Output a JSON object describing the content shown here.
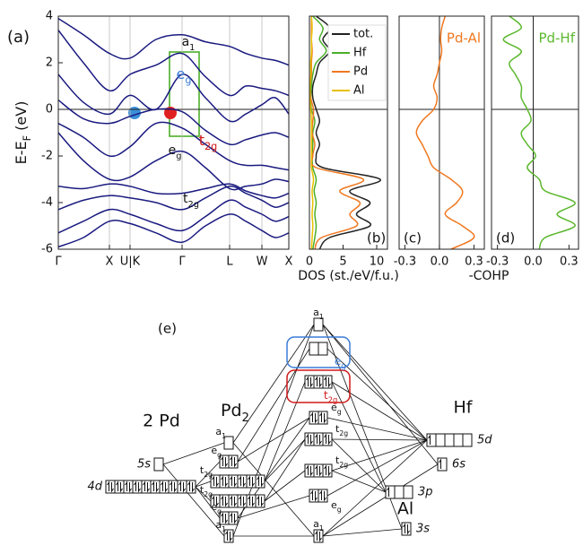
{
  "chart_data": [
    {
      "type": "line",
      "label": "(a)",
      "ylabel": [
        "E-E",
        "F",
        " (eV)"
      ],
      "x": [
        0,
        28,
        57,
        80,
        109,
        138,
        164,
        191,
        209,
        227,
        242,
        257
      ],
      "xlim": [
        0,
        257
      ],
      "xticks": [
        {
          "value": 0,
          "label": "Γ"
        },
        {
          "value": 57,
          "label": "X"
        },
        {
          "value": 80,
          "label": "U|K"
        },
        {
          "value": 138,
          "label": "Γ"
        },
        {
          "value": 191,
          "label": "L"
        },
        {
          "value": 227,
          "label": "W"
        },
        {
          "value": 257,
          "label": "X"
        }
      ],
      "ylim": [
        -6,
        4
      ],
      "yticks": [
        -6,
        -4,
        -2,
        0,
        2,
        4
      ],
      "grid": true,
      "color": "#1a1a80",
      "series": [
        {
          "values": [
            -5.9,
            -5.5,
            -4.8,
            -4.9,
            -5.3,
            -5.7,
            -5.0,
            -4.5,
            -4.8,
            -5.2,
            -5.5,
            -5.3
          ]
        },
        {
          "values": [
            -5.3,
            -4.8,
            -4.3,
            -4.5,
            -4.9,
            -5.2,
            -4.6,
            -3.9,
            -4.2,
            -4.5,
            -4.8,
            -4.6
          ]
        },
        {
          "values": [
            -4.3,
            -3.9,
            -3.7,
            -3.8,
            -4.0,
            -4.3,
            -3.8,
            -3.3,
            -3.6,
            -3.9,
            -4.2,
            -4.0
          ]
        },
        {
          "values": [
            -3.3,
            -3.4,
            -3.2,
            -3.3,
            -3.6,
            -3.6,
            -3.4,
            -3.2,
            -3.5,
            -3.7,
            -3.8,
            -3.6
          ]
        },
        {
          "values": [
            -1.0,
            -2.2,
            -3.0,
            -2.9,
            -2.2,
            -1.8,
            -2.5,
            -3.4,
            -3.3,
            -3.2,
            -3.0,
            -3.1
          ]
        },
        {
          "values": [
            -0.6,
            -1.2,
            -2.0,
            -1.6,
            -0.6,
            -0.8,
            -1.5,
            -2.2,
            -2.4,
            -2.4,
            -2.5,
            -2.6
          ]
        },
        {
          "values": [
            0.4,
            -0.4,
            -0.6,
            -0.3,
            0.0,
            -0.1,
            -0.9,
            -1.5,
            -1.3,
            -1.1,
            -1.0,
            -1.2
          ]
        },
        {
          "values": [
            1.5,
            0.3,
            -0.2,
            0.6,
            0.0,
            1.5,
            0.5,
            -0.5,
            -0.2,
            0.2,
            0.5,
            -0.2
          ]
        },
        {
          "values": [
            3.4,
            2.0,
            0.8,
            1.5,
            1.9,
            2.4,
            1.4,
            0.6,
            1.0,
            0.9,
            0.8,
            0.6
          ]
        },
        {
          "values": [
            3.9,
            3.2,
            2.4,
            2.2,
            3.0,
            3.2,
            2.9,
            2.7,
            2.4,
            2.2,
            2.1,
            1.9
          ]
        }
      ],
      "annotations": [
        {
          "text": [
            "a",
            "1"
          ],
          "color": "#111111"
        },
        {
          "text": [
            "e",
            "g"
          ],
          "color": "#3a7bd5"
        },
        {
          "text": [
            "t",
            "2g"
          ],
          "color": "#d01818"
        },
        {
          "text": [
            "e",
            "g"
          ],
          "color": "#111111"
        },
        {
          "text": [
            "t",
            "2g"
          ],
          "color": "#111111"
        }
      ]
    },
    {
      "type": "line",
      "orientation": "horizontal",
      "label": "(b)",
      "xlabel": "DOS (st./eV/f.u.)",
      "y": [
        -6,
        -5.5,
        -5,
        -4.5,
        -4,
        -3.5,
        -3,
        -2.5,
        -2,
        -1.5,
        -1,
        -0.5,
        0,
        0.5,
        1,
        1.5,
        2,
        2.5,
        3,
        3.5,
        4
      ],
      "xlim": [
        0,
        11.6
      ],
      "xticks": [
        0,
        5,
        10
      ],
      "ylim": [
        -6,
        4
      ],
      "legend": "upper right",
      "series": [
        {
          "name": "tot.",
          "color": "#222222",
          "values": [
            1.5,
            3,
            9,
            7,
            9,
            6,
            10.5,
            2,
            1,
            1.5,
            1,
            1.5,
            1,
            0.5,
            0.5,
            1,
            1.5,
            3,
            2,
            3,
            1
          ]
        },
        {
          "name": "Hf",
          "color": "#4caf2a",
          "values": [
            0.5,
            0.8,
            1,
            0.8,
            1,
            0.7,
            1,
            0.5,
            0.4,
            0.5,
            0.5,
            0.8,
            0.3,
            0.2,
            0.3,
            0.5,
            1,
            2.5,
            1.5,
            2,
            0.5
          ]
        },
        {
          "name": "Pd",
          "color": "#f07820",
          "values": [
            0.8,
            1.8,
            7,
            6,
            7.5,
            4.5,
            8,
            1,
            0.5,
            0.8,
            0.4,
            0.5,
            0.6,
            0.2,
            0.1,
            0.3,
            0.3,
            0.4,
            0.3,
            0.3,
            0.3
          ]
        },
        {
          "name": "Al",
          "color": "#e8c000",
          "values": [
            0.3,
            0.4,
            0.5,
            0.4,
            0.5,
            0.4,
            0.6,
            0.3,
            0.3,
            0.3,
            0.3,
            0.3,
            0.2,
            0.1,
            0.1,
            0.2,
            0.2,
            0.3,
            0.3,
            0.4,
            0.3
          ]
        }
      ]
    },
    {
      "type": "line",
      "orientation": "horizontal",
      "label": "(c)",
      "xlabel": "-COHP",
      "y": [
        -6,
        -5.5,
        -5,
        -4.5,
        -4,
        -3.5,
        -3,
        -2.5,
        -2,
        -1.5,
        -1,
        -0.5,
        0,
        0.5,
        1,
        1.5,
        2,
        2.5,
        3,
        3.5,
        4
      ],
      "xlim": [
        -0.35,
        0.39
      ],
      "xticks": [
        -0.3,
        {
          "value": 0,
          "label": "0.0"
        },
        0.3
      ],
      "ylim": [
        -6,
        4
      ],
      "series": [
        {
          "name": "Pd-Al",
          "color": "#f07820",
          "values": [
            0.1,
            0.3,
            0.2,
            0.05,
            0.15,
            0.2,
            0.1,
            -0.05,
            -0.1,
            -0.15,
            -0.2,
            -0.15,
            -0.05,
            -0.02,
            -0.05,
            -0.02,
            0.0,
            0.02,
            0.01,
            0.02,
            0.05
          ]
        }
      ]
    },
    {
      "type": "line",
      "orientation": "horizontal",
      "label": "(d)",
      "y": [
        -6,
        -5.5,
        -5,
        -4.5,
        -4,
        -3.5,
        -3,
        -2.5,
        -2,
        -1.5,
        -1,
        -0.5,
        0,
        0.5,
        1,
        1.5,
        2,
        2.5,
        3,
        3.5,
        4
      ],
      "xlim": [
        -0.35,
        0.38
      ],
      "xticks": [
        -0.3,
        {
          "value": 0,
          "label": "0.0"
        },
        0.3
      ],
      "ylim": [
        -6,
        4
      ],
      "series": [
        {
          "name": "Pd-Hf",
          "color": "#5cb82e",
          "values": [
            0.05,
            0.1,
            0.35,
            0.2,
            0.35,
            0.1,
            0.05,
            -0.05,
            0.02,
            -0.05,
            -0.1,
            -0.02,
            -0.05,
            -0.1,
            -0.1,
            -0.15,
            -0.2,
            -0.1,
            -0.25,
            -0.1,
            -0.2
          ]
        }
      ]
    }
  ],
  "diagram": {
    "label": "(e)",
    "titles": {
      "pd": "2 Pd",
      "pd2": [
        "Pd",
        "2"
      ],
      "hf": "Hf",
      "al": "Al"
    },
    "atomic": [
      "5s",
      "4d",
      "5d",
      "6s",
      "3p",
      "3s"
    ],
    "pd2_levels": [
      [
        "a",
        "1"
      ],
      [
        "e",
        "g"
      ],
      [
        "t",
        "2g"
      ],
      [
        "t",
        "2g"
      ],
      [
        "e",
        "g"
      ],
      [
        "a",
        "1"
      ]
    ],
    "mo_levels": [
      [
        "a",
        "1"
      ],
      [
        "e",
        "g"
      ],
      [
        "t",
        "2g"
      ],
      [
        "e",
        "g"
      ],
      [
        "t",
        "2g"
      ],
      [
        "t",
        "2g"
      ],
      [
        "e",
        "g"
      ],
      [
        "a",
        "1"
      ]
    ]
  }
}
